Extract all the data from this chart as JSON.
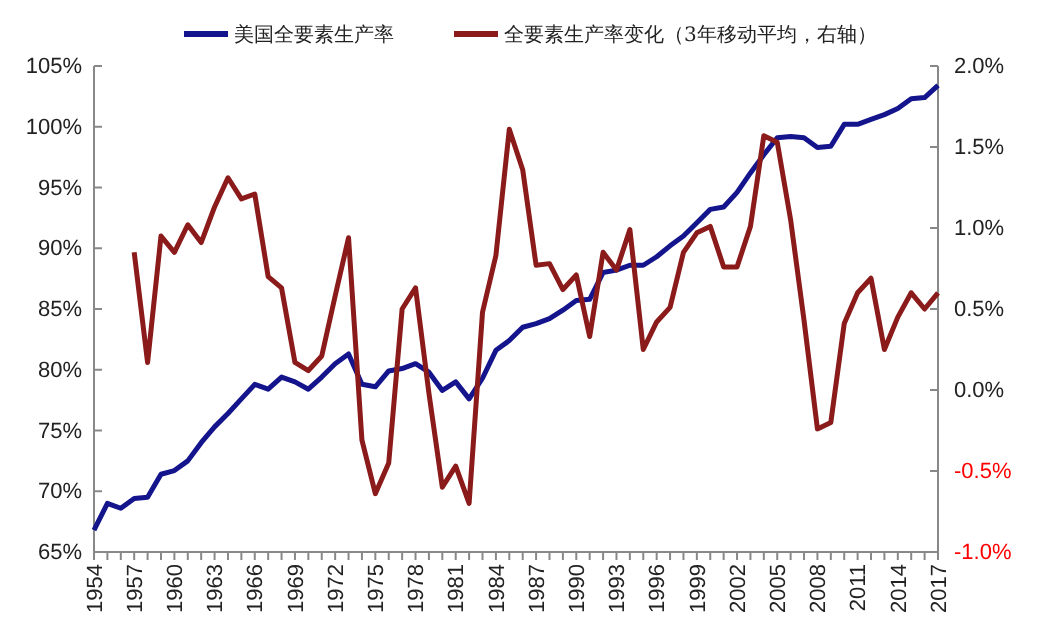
{
  "chart_data": {
    "type": "line",
    "legend": "top",
    "grid": false,
    "line_style": "solid",
    "marker": "none",
    "x": [
      1954,
      1955,
      1956,
      1957,
      1958,
      1959,
      1960,
      1961,
      1962,
      1963,
      1964,
      1965,
      1966,
      1967,
      1968,
      1969,
      1970,
      1971,
      1972,
      1973,
      1974,
      1975,
      1976,
      1977,
      1978,
      1979,
      1980,
      1981,
      1982,
      1983,
      1984,
      1985,
      1986,
      1987,
      1988,
      1989,
      1990,
      1991,
      1992,
      1993,
      1994,
      1995,
      1996,
      1997,
      1998,
      1999,
      2000,
      2001,
      2002,
      2003,
      2004,
      2005,
      2006,
      2007,
      2008,
      2009,
      2010,
      2011,
      2012,
      2013,
      2014,
      2015,
      2016,
      2017
    ],
    "series": [
      {
        "name": "美国全要素生产率",
        "color": "#14148c",
        "values": [
          66.8,
          69.0,
          68.6,
          69.4,
          69.5,
          71.4,
          71.7,
          72.5,
          74.0,
          75.3,
          76.4,
          77.6,
          78.8,
          78.4,
          79.4,
          79.0,
          78.4,
          79.4,
          80.5,
          81.3,
          78.8,
          78.6,
          79.9,
          80.1,
          80.5,
          79.8,
          78.3,
          79.0,
          77.6,
          79.3,
          81.6,
          82.4,
          83.5,
          83.8,
          84.2,
          84.9,
          85.7,
          85.8,
          88.0,
          88.2,
          88.6,
          88.6,
          89.3,
          90.2,
          91.0,
          92.1,
          93.2,
          93.4,
          94.6,
          96.2,
          97.7,
          99.1,
          99.2,
          99.1,
          98.3,
          98.4,
          100.2,
          100.2,
          100.6,
          101.0,
          101.5,
          102.3,
          102.4,
          103.4
        ]
      },
      {
        "name": "全要素生产率变化（3年移动平均，右轴）",
        "color": "#8b1a1a",
        "axis": "y2",
        "values": [
          null,
          null,
          null,
          0.85,
          0.17,
          0.95,
          0.85,
          1.02,
          0.91,
          1.13,
          1.31,
          1.18,
          1.21,
          0.7,
          0.63,
          0.17,
          0.12,
          0.21,
          0.58,
          0.94,
          -0.31,
          -0.64,
          -0.45,
          0.5,
          0.63,
          -0.02,
          -0.6,
          -0.47,
          -0.7,
          0.48,
          0.83,
          1.61,
          1.36,
          0.77,
          0.78,
          0.62,
          0.71,
          0.33,
          0.85,
          0.74,
          0.99,
          0.25,
          0.42,
          0.51,
          0.85,
          0.97,
          1.01,
          0.76,
          0.76,
          1.01,
          1.57,
          1.53,
          1.05,
          0.43,
          -0.24,
          -0.2,
          0.41,
          0.6,
          0.69,
          0.25,
          0.45,
          0.6,
          0.5,
          0.6
        ]
      }
    ],
    "xlim": [
      1954,
      2017
    ],
    "xticks": [
      {
        "value": 1954,
        "label": "1954"
      },
      {
        "value": 1955,
        "label": null
      },
      {
        "value": 1956,
        "label": null
      },
      {
        "value": 1957,
        "label": "1957"
      },
      {
        "value": 1958,
        "label": null
      },
      {
        "value": 1959,
        "label": null
      },
      {
        "value": 1960,
        "label": "1960"
      },
      {
        "value": 1961,
        "label": null
      },
      {
        "value": 1962,
        "label": null
      },
      {
        "value": 1963,
        "label": "1963"
      },
      {
        "value": 1964,
        "label": null
      },
      {
        "value": 1965,
        "label": null
      },
      {
        "value": 1966,
        "label": "1966"
      },
      {
        "value": 1967,
        "label": null
      },
      {
        "value": 1968,
        "label": null
      },
      {
        "value": 1969,
        "label": "1969"
      },
      {
        "value": 1970,
        "label": null
      },
      {
        "value": 1971,
        "label": null
      },
      {
        "value": 1972,
        "label": "1972"
      },
      {
        "value": 1973,
        "label": null
      },
      {
        "value": 1974,
        "label": null
      },
      {
        "value": 1975,
        "label": "1975"
      },
      {
        "value": 1976,
        "label": null
      },
      {
        "value": 1977,
        "label": null
      },
      {
        "value": 1978,
        "label": "1978"
      },
      {
        "value": 1979,
        "label": null
      },
      {
        "value": 1980,
        "label": null
      },
      {
        "value": 1981,
        "label": "1981"
      },
      {
        "value": 1982,
        "label": null
      },
      {
        "value": 1983,
        "label": null
      },
      {
        "value": 1984,
        "label": "1984"
      },
      {
        "value": 1985,
        "label": null
      },
      {
        "value": 1986,
        "label": null
      },
      {
        "value": 1987,
        "label": "1987"
      },
      {
        "value": 1988,
        "label": null
      },
      {
        "value": 1989,
        "label": null
      },
      {
        "value": 1990,
        "label": "1990"
      },
      {
        "value": 1991,
        "label": null
      },
      {
        "value": 1992,
        "label": null
      },
      {
        "value": 1993,
        "label": "1993"
      },
      {
        "value": 1994,
        "label": null
      },
      {
        "value": 1995,
        "label": null
      },
      {
        "value": 1996,
        "label": "1996"
      },
      {
        "value": 1997,
        "label": null
      },
      {
        "value": 1998,
        "label": null
      },
      {
        "value": 1999,
        "label": "1999"
      },
      {
        "value": 2000,
        "label": null
      },
      {
        "value": 2001,
        "label": null
      },
      {
        "value": 2002,
        "label": "2002"
      },
      {
        "value": 2003,
        "label": null
      },
      {
        "value": 2004,
        "label": null
      },
      {
        "value": 2005,
        "label": "2005"
      },
      {
        "value": 2006,
        "label": null
      },
      {
        "value": 2007,
        "label": null
      },
      {
        "value": 2008,
        "label": "2008"
      },
      {
        "value": 2009,
        "label": null
      },
      {
        "value": 2010,
        "label": null
      },
      {
        "value": 2011,
        "label": "2011"
      },
      {
        "value": 2012,
        "label": null
      },
      {
        "value": 2013,
        "label": null
      },
      {
        "value": 2014,
        "label": "2014"
      },
      {
        "value": 2015,
        "label": null
      },
      {
        "value": 2016,
        "label": null
      },
      {
        "value": 2017,
        "label": "2017"
      }
    ],
    "ylim": [
      65,
      105
    ],
    "yticks": [
      {
        "value": 65,
        "label": "65%"
      },
      {
        "value": 70,
        "label": "70%"
      },
      {
        "value": 75,
        "label": "75%"
      },
      {
        "value": 80,
        "label": "80%"
      },
      {
        "value": 85,
        "label": "85%"
      },
      {
        "value": 90,
        "label": "90%"
      },
      {
        "value": 95,
        "label": "95%"
      },
      {
        "value": 100,
        "label": "100%"
      },
      {
        "value": 105,
        "label": "105%"
      }
    ],
    "y2lim": [
      -1.0,
      2.0
    ],
    "y2ticks": [
      {
        "value": -1.0,
        "label": "-1.0%"
      },
      {
        "value": -0.5,
        "label": "-0.5%"
      },
      {
        "value": 0.0,
        "label": "0.0%"
      },
      {
        "value": 0.5,
        "label": "0.5%"
      },
      {
        "value": 1.0,
        "label": "1.0%"
      },
      {
        "value": 1.5,
        "label": "1.5%"
      },
      {
        "value": 2.0,
        "label": "2.0%"
      }
    ]
  }
}
